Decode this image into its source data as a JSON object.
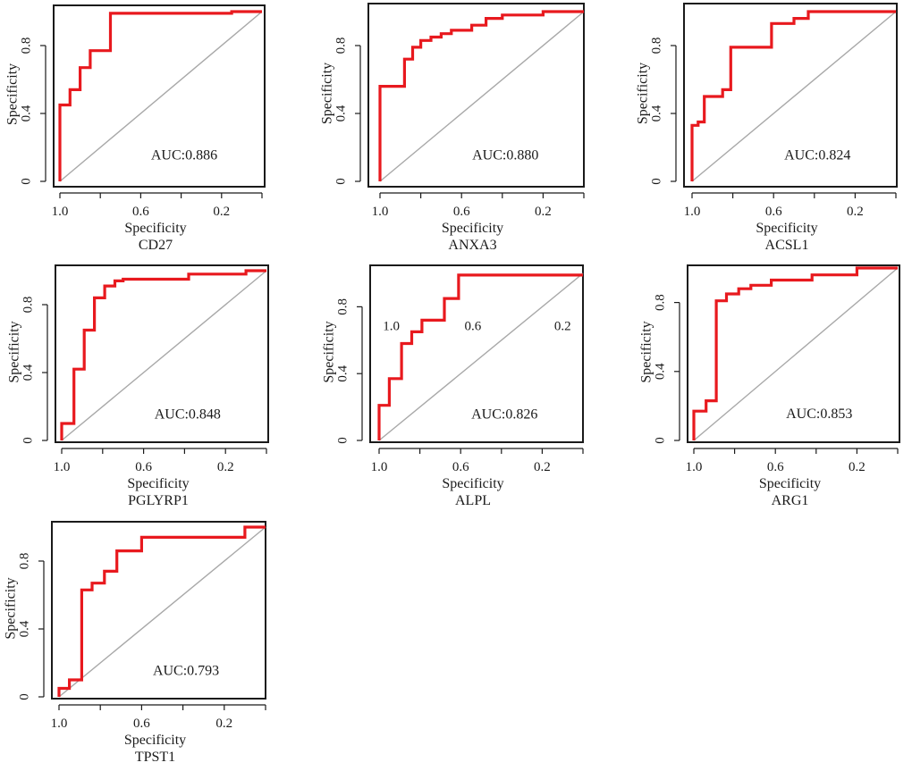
{
  "colors": {
    "curve": "#e8191e",
    "diagonal": "#a8a8a8",
    "frame": "#1a1a1a"
  },
  "chart_data": [
    {
      "type": "line",
      "gene": "CD27",
      "auc_label": "AUC:0.886",
      "xlabel": "Specificity",
      "ylabel": "Specificity",
      "xlim": [
        1.0,
        0.0
      ],
      "ylim": [
        0,
        1
      ],
      "xticks": [
        1.0,
        0.6,
        0.2
      ],
      "xtick_labels": [
        "1.0",
        "0.6",
        "0.2"
      ],
      "yticks": [
        0,
        0.4,
        0.8
      ],
      "ytick_labels": [
        "0",
        "0.4",
        "0.8"
      ],
      "spec": [
        1.0,
        1.0,
        0.95,
        0.95,
        0.9,
        0.9,
        0.85,
        0.85,
        0.75,
        0.75,
        0.15,
        0.15,
        0.0
      ],
      "sens": [
        0.0,
        0.45,
        0.45,
        0.54,
        0.54,
        0.67,
        0.67,
        0.77,
        0.77,
        0.99,
        0.99,
        1.0,
        1.0
      ]
    },
    {
      "type": "line",
      "gene": "ANXA3",
      "auc_label": "AUC:0.880",
      "xlabel": "Specificity",
      "ylabel": "Specificity",
      "xlim": [
        1.0,
        0.0
      ],
      "ylim": [
        0,
        1
      ],
      "xticks": [
        1.0,
        0.6,
        0.2
      ],
      "xtick_labels": [
        "1.0",
        "0.6",
        "0.2"
      ],
      "yticks": [
        0,
        0.4,
        0.8
      ],
      "ytick_labels": [
        "0",
        "0.4",
        "0.8"
      ],
      "spec": [
        1.0,
        1.0,
        0.88,
        0.88,
        0.84,
        0.84,
        0.8,
        0.8,
        0.75,
        0.75,
        0.7,
        0.7,
        0.65,
        0.65,
        0.55,
        0.55,
        0.48,
        0.48,
        0.4,
        0.4,
        0.2,
        0.2,
        0.0
      ],
      "sens": [
        0.0,
        0.56,
        0.56,
        0.72,
        0.72,
        0.79,
        0.79,
        0.83,
        0.83,
        0.85,
        0.85,
        0.87,
        0.87,
        0.89,
        0.89,
        0.92,
        0.92,
        0.96,
        0.96,
        0.98,
        0.98,
        1.0,
        1.0
      ]
    },
    {
      "type": "line",
      "gene": "ACSL1",
      "auc_label": "AUC:0.824",
      "xlabel": "Specificity",
      "ylabel": "Specificity",
      "xlim": [
        1.0,
        0.0
      ],
      "ylim": [
        0,
        1
      ],
      "xticks": [
        1.0,
        0.6,
        0.2
      ],
      "xtick_labels": [
        "1.0",
        "0.6",
        "0.2"
      ],
      "yticks": [
        0,
        0.4,
        0.8
      ],
      "ytick_labels": [
        "0",
        "0.4",
        "0.8"
      ],
      "spec": [
        1.0,
        1.0,
        0.97,
        0.97,
        0.94,
        0.94,
        0.85,
        0.85,
        0.81,
        0.81,
        0.61,
        0.61,
        0.5,
        0.5,
        0.43,
        0.43,
        0.0
      ],
      "sens": [
        0.0,
        0.33,
        0.33,
        0.35,
        0.35,
        0.5,
        0.5,
        0.54,
        0.54,
        0.79,
        0.79,
        0.93,
        0.93,
        0.96,
        0.96,
        1.0,
        1.0
      ]
    },
    {
      "type": "line",
      "gene": "PGLYRP1",
      "auc_label": "AUC:0.848",
      "xlabel": "Specificity",
      "ylabel": "Specificity",
      "xlim": [
        1.0,
        0.0
      ],
      "ylim": [
        0,
        1
      ],
      "xticks": [
        1.0,
        0.6,
        0.2
      ],
      "xtick_labels": [
        "1.0",
        "0.6",
        "0.2"
      ],
      "yticks": [
        0,
        0.4,
        0.8
      ],
      "ytick_labels": [
        "0",
        "0.4",
        "0.8"
      ],
      "spec": [
        1.0,
        1.0,
        0.94,
        0.94,
        0.89,
        0.89,
        0.84,
        0.84,
        0.79,
        0.79,
        0.74,
        0.74,
        0.7,
        0.7,
        0.38,
        0.38,
        0.1,
        0.1,
        0.0
      ],
      "sens": [
        0.0,
        0.1,
        0.1,
        0.42,
        0.42,
        0.65,
        0.65,
        0.84,
        0.84,
        0.91,
        0.91,
        0.94,
        0.94,
        0.95,
        0.95,
        0.98,
        0.98,
        1.0,
        1.0
      ]
    },
    {
      "type": "line",
      "gene": "ALPL",
      "auc_label": "AUC:0.826",
      "xlabel": "Specificity",
      "ylabel": "Specificity",
      "xlim": [
        1.0,
        0.0
      ],
      "ylim": [
        0,
        1
      ],
      "xticks": [
        1.0,
        0.6,
        0.2
      ],
      "xtick_labels": [
        "1.0",
        "0.6",
        "0.2"
      ],
      "yticks": [
        0,
        0.4,
        0.8
      ],
      "ytick_labels": [
        "0",
        "0.4",
        "0.8"
      ],
      "inner_labels": [
        "1.0",
        "0.6",
        "0.2"
      ],
      "spec": [
        1.0,
        1.0,
        0.95,
        0.95,
        0.89,
        0.89,
        0.84,
        0.84,
        0.79,
        0.79,
        0.68,
        0.68,
        0.61,
        0.61,
        0.0
      ],
      "sens": [
        0.0,
        0.21,
        0.21,
        0.37,
        0.37,
        0.58,
        0.58,
        0.65,
        0.65,
        0.72,
        0.72,
        0.85,
        0.85,
        0.99,
        0.99
      ]
    },
    {
      "type": "line",
      "gene": "ARG1",
      "auc_label": "AUC:0.853",
      "xlabel": "Specificity",
      "ylabel": "Specificity",
      "xlim": [
        1.0,
        0.0
      ],
      "ylim": [
        0,
        1
      ],
      "xticks": [
        1.0,
        0.6,
        0.2
      ],
      "xtick_labels": [
        "1.0",
        "0.6",
        "0.2"
      ],
      "yticks": [
        0,
        0.4,
        0.8
      ],
      "ytick_labels": [
        "0",
        "0.4",
        "0.8"
      ],
      "spec": [
        1.0,
        1.0,
        0.94,
        0.94,
        0.89,
        0.89,
        0.84,
        0.84,
        0.78,
        0.78,
        0.72,
        0.72,
        0.62,
        0.62,
        0.42,
        0.42,
        0.2,
        0.2,
        0.0
      ],
      "sens": [
        0.0,
        0.17,
        0.17,
        0.23,
        0.23,
        0.81,
        0.81,
        0.85,
        0.85,
        0.88,
        0.88,
        0.9,
        0.9,
        0.93,
        0.93,
        0.96,
        0.96,
        1.0,
        1.0
      ]
    },
    {
      "type": "line",
      "gene": "TPST1",
      "auc_label": "AUC:0.793",
      "xlabel": "Specificity",
      "ylabel": "Specificity",
      "xlim": [
        1.0,
        0.0
      ],
      "ylim": [
        0,
        1
      ],
      "xticks": [
        1.0,
        0.6,
        0.2
      ],
      "xtick_labels": [
        "1.0",
        "0.6",
        "0.2"
      ],
      "yticks": [
        0,
        0.4,
        0.8
      ],
      "ytick_labels": [
        "0",
        "0.4",
        "0.8"
      ],
      "spec": [
        1.0,
        1.0,
        0.95,
        0.95,
        0.89,
        0.89,
        0.84,
        0.84,
        0.78,
        0.78,
        0.72,
        0.72,
        0.6,
        0.6,
        0.1,
        0.1,
        0.0
      ],
      "sens": [
        0.0,
        0.05,
        0.05,
        0.1,
        0.1,
        0.63,
        0.63,
        0.67,
        0.67,
        0.74,
        0.74,
        0.86,
        0.86,
        0.94,
        0.94,
        1.0,
        1.0
      ]
    }
  ]
}
